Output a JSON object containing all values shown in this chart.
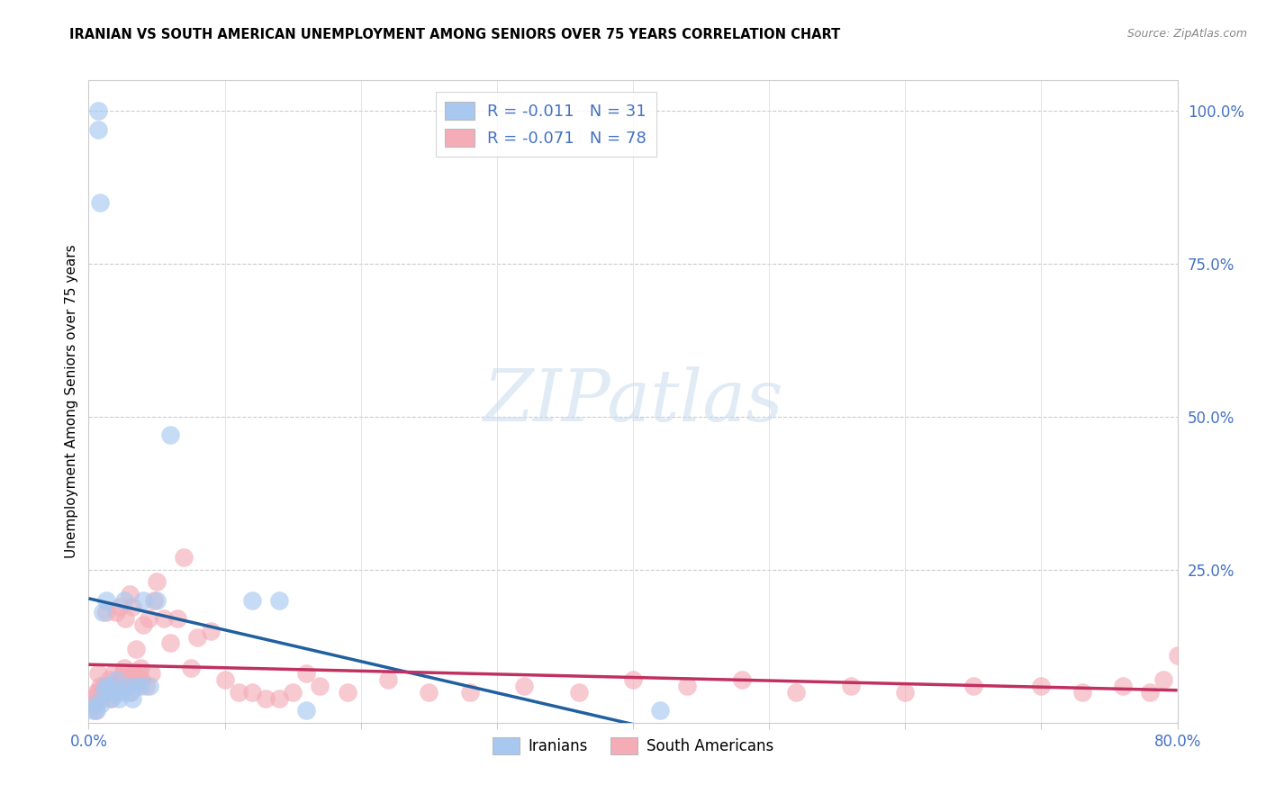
{
  "title": "IRANIAN VS SOUTH AMERICAN UNEMPLOYMENT AMONG SENIORS OVER 75 YEARS CORRELATION CHART",
  "source": "Source: ZipAtlas.com",
  "ylabel": "Unemployment Among Seniors over 75 years",
  "xlim": [
    0.0,
    0.8
  ],
  "ylim": [
    0.0,
    1.05
  ],
  "iranians_R": -0.011,
  "iranians_N": 31,
  "south_americans_R": -0.071,
  "south_americans_N": 78,
  "iranians_color": "#A8C8F0",
  "south_americans_color": "#F4ACB7",
  "iranians_line_color": "#2060A0",
  "south_americans_line_color": "#C03060",
  "iranians_x": [
    0.003,
    0.005,
    0.006,
    0.007,
    0.007,
    0.008,
    0.009,
    0.01,
    0.011,
    0.012,
    0.013,
    0.015,
    0.016,
    0.018,
    0.02,
    0.022,
    0.024,
    0.026,
    0.028,
    0.03,
    0.032,
    0.035,
    0.038,
    0.04,
    0.045,
    0.05,
    0.06,
    0.12,
    0.14,
    0.16,
    0.42
  ],
  "iranians_y": [
    0.02,
    0.03,
    0.02,
    0.97,
    1.0,
    0.85,
    0.03,
    0.18,
    0.05,
    0.06,
    0.2,
    0.06,
    0.04,
    0.05,
    0.07,
    0.04,
    0.05,
    0.2,
    0.06,
    0.05,
    0.04,
    0.06,
    0.06,
    0.2,
    0.06,
    0.2,
    0.47,
    0.2,
    0.2,
    0.02,
    0.02
  ],
  "south_americans_x": [
    0.003,
    0.004,
    0.005,
    0.006,
    0.007,
    0.007,
    0.008,
    0.009,
    0.01,
    0.011,
    0.012,
    0.013,
    0.014,
    0.015,
    0.016,
    0.017,
    0.018,
    0.019,
    0.02,
    0.021,
    0.022,
    0.023,
    0.024,
    0.025,
    0.026,
    0.027,
    0.028,
    0.029,
    0.03,
    0.031,
    0.032,
    0.033,
    0.034,
    0.035,
    0.036,
    0.037,
    0.038,
    0.039,
    0.04,
    0.042,
    0.044,
    0.046,
    0.048,
    0.05,
    0.055,
    0.06,
    0.065,
    0.07,
    0.075,
    0.08,
    0.09,
    0.1,
    0.11,
    0.12,
    0.13,
    0.14,
    0.15,
    0.16,
    0.17,
    0.19,
    0.22,
    0.25,
    0.28,
    0.32,
    0.36,
    0.4,
    0.44,
    0.48,
    0.52,
    0.56,
    0.6,
    0.65,
    0.7,
    0.73,
    0.76,
    0.78,
    0.79,
    0.8
  ],
  "south_americans_y": [
    0.04,
    0.03,
    0.02,
    0.05,
    0.05,
    0.08,
    0.06,
    0.04,
    0.05,
    0.06,
    0.05,
    0.18,
    0.06,
    0.07,
    0.04,
    0.06,
    0.08,
    0.06,
    0.18,
    0.05,
    0.06,
    0.19,
    0.07,
    0.08,
    0.09,
    0.17,
    0.06,
    0.08,
    0.21,
    0.05,
    0.19,
    0.08,
    0.08,
    0.12,
    0.07,
    0.08,
    0.09,
    0.07,
    0.16,
    0.06,
    0.17,
    0.08,
    0.2,
    0.23,
    0.17,
    0.13,
    0.17,
    0.27,
    0.09,
    0.14,
    0.15,
    0.07,
    0.05,
    0.05,
    0.04,
    0.04,
    0.05,
    0.08,
    0.06,
    0.05,
    0.07,
    0.05,
    0.05,
    0.06,
    0.05,
    0.07,
    0.06,
    0.07,
    0.05,
    0.06,
    0.05,
    0.06,
    0.06,
    0.05,
    0.06,
    0.05,
    0.07,
    0.11
  ]
}
